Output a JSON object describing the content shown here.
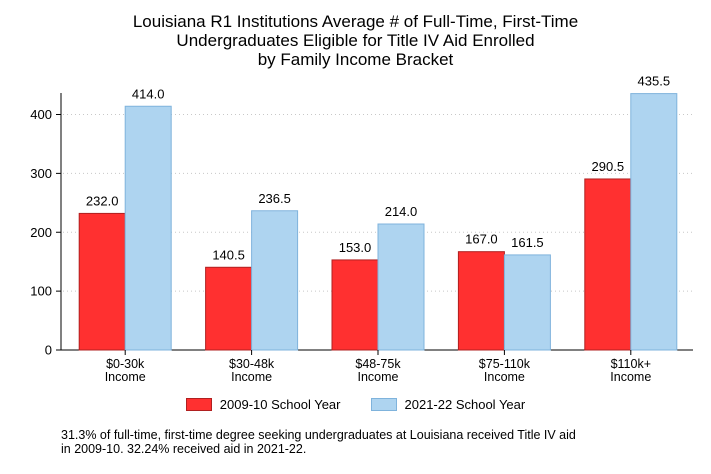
{
  "chart_data": {
    "type": "bar",
    "title_lines": [
      "Louisiana R1 Institutions Average # of Full-Time, First-Time",
      "Undergraduates Eligible for Title IV Aid Enrolled",
      "by Family Income Bracket"
    ],
    "categories": [
      [
        "$0-30k",
        "Income"
      ],
      [
        "$30-48k",
        "Income"
      ],
      [
        "$48-75k",
        "Income"
      ],
      [
        "$75-110k",
        "Income"
      ],
      [
        "$110k+",
        "Income"
      ]
    ],
    "series": [
      {
        "name": "2009-10 School Year",
        "values": [
          232.0,
          140.5,
          153.0,
          167.0,
          290.5
        ],
        "labels": [
          "232.0",
          "140.5",
          "153.0",
          "167.0",
          "290.5"
        ],
        "color": "#ff3030",
        "stroke": "#b02020"
      },
      {
        "name": "2021-22 School Year",
        "values": [
          414.0,
          236.5,
          214.0,
          161.5,
          435.5
        ],
        "labels": [
          "414.0",
          "236.5",
          "214.0",
          "161.5",
          "435.5"
        ],
        "color": "#aed4f0",
        "stroke": "#7fb3dc"
      }
    ],
    "y_ticks": [
      "0",
      "100",
      "200",
      "300",
      "400"
    ],
    "ylim": [
      0,
      445
    ],
    "grid": true,
    "legend_position": "bottom"
  },
  "footnote_lines": [
    "31.3% of full-time, first-time degree seeking undergraduates at Louisiana received Title IV aid",
    "in 2009-10. 32.24% received aid in 2021-22."
  ]
}
